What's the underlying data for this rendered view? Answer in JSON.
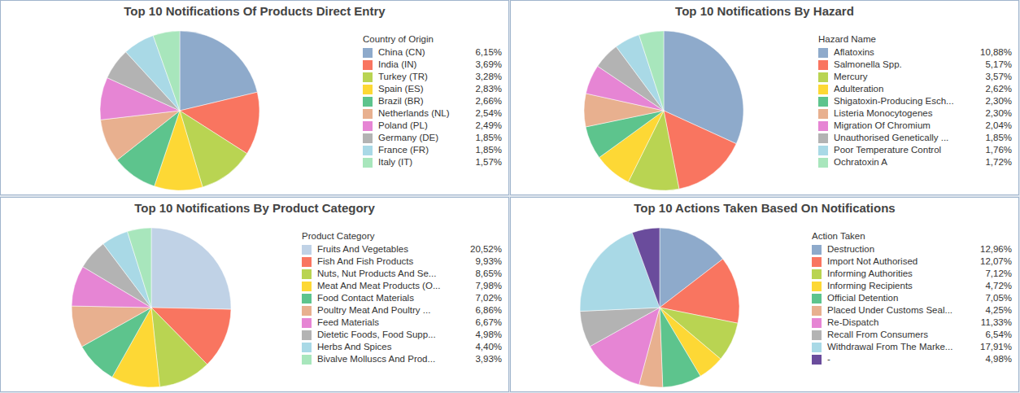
{
  "chart_data": [
    {
      "type": "pie",
      "title": "Top 10 Notifications Of Products Direct Entry",
      "legend_title": "Country of Origin",
      "legend": "right",
      "categories": [
        "China (CN)",
        "India (IN)",
        "Turkey (TR)",
        "Spain (ES)",
        "Brazil (BR)",
        "Netherlands (NL)",
        "Poland (PL)",
        "Germany (DE)",
        "France (FR)",
        "Italy (IT)"
      ],
      "values": [
        6.15,
        3.69,
        3.28,
        2.83,
        2.66,
        2.54,
        2.49,
        1.85,
        1.85,
        1.57
      ],
      "value_labels": [
        "6,15%",
        "3,69%",
        "3,28%",
        "2,83%",
        "2,66%",
        "2,54%",
        "2,49%",
        "1,85%",
        "1,85%",
        "1,57%"
      ],
      "colors": [
        "#8eaacb",
        "#f97560",
        "#b9d452",
        "#fdd835",
        "#5dc48d",
        "#e8b08f",
        "#e685d4",
        "#b3b3b3",
        "#a9d9e6",
        "#a8e6bc"
      ]
    },
    {
      "type": "pie",
      "title": "Top 10 Notifications By Hazard",
      "legend_title": "Hazard Name",
      "legend": "right",
      "categories": [
        "Aflatoxins",
        "Salmonella Spp.",
        "Mercury",
        "Adulteration",
        "Shigatoxin-Producing Esch...",
        "Listeria Monocytogenes",
        "Migration Of Chromium",
        "Unauthorised Genetically ...",
        "Poor Temperature Control",
        "Ochratoxin A"
      ],
      "values": [
        10.88,
        5.17,
        3.57,
        2.62,
        2.3,
        2.3,
        2.04,
        1.85,
        1.76,
        1.72
      ],
      "value_labels": [
        "10,88%",
        "5,17%",
        "3,57%",
        "2,62%",
        "2,30%",
        "2,30%",
        "2,04%",
        "1,85%",
        "1,76%",
        "1,72%"
      ],
      "colors": [
        "#8eaacb",
        "#f97560",
        "#b9d452",
        "#fdd835",
        "#5dc48d",
        "#e8b08f",
        "#e685d4",
        "#b3b3b3",
        "#a9d9e6",
        "#a8e6bc"
      ]
    },
    {
      "type": "pie",
      "title": "Top 10 Notifications By Product Category",
      "legend_title": "Product Category",
      "legend": "right",
      "categories": [
        "Fruits And Vegetables",
        "Fish And Fish Products",
        "Nuts, Nut Products And Se...",
        "Meat And Meat Products (O...",
        "Food Contact Materials",
        "Poultry Meat And Poultry ...",
        "Feed Materials",
        "Dietetic Foods, Food Supp...",
        "Herbs And Spices",
        "Bivalve Molluscs And Prod..."
      ],
      "values": [
        20.52,
        9.93,
        8.65,
        7.98,
        7.02,
        6.86,
        6.67,
        4.98,
        4.4,
        3.93
      ],
      "value_labels": [
        "20,52%",
        "9,93%",
        "8,65%",
        "7,98%",
        "7,02%",
        "6,86%",
        "6,67%",
        "4,98%",
        "4,40%",
        "3,93%"
      ],
      "colors": [
        "#c0d2e6",
        "#f97560",
        "#b9d452",
        "#fdd835",
        "#5dc48d",
        "#e8b08f",
        "#e685d4",
        "#b3b3b3",
        "#a9d9e6",
        "#a8e6bc"
      ]
    },
    {
      "type": "pie",
      "title": "Top 10 Actions Taken Based On Notifications",
      "legend_title": "Action Taken",
      "legend": "right",
      "categories": [
        "Destruction",
        "Import Not Authorised",
        "Informing Authorities",
        "Informing Recipients",
        "Official Detention",
        "Placed Under Customs Seal...",
        "Re-Dispatch",
        "Recall From Consumers",
        "Withdrawal From The Marke...",
        "-"
      ],
      "values": [
        12.96,
        12.07,
        7.12,
        4.72,
        7.05,
        4.25,
        11.33,
        6.54,
        17.91,
        4.98
      ],
      "value_labels": [
        "12,96%",
        "12,07%",
        "7,12%",
        "4,72%",
        "7,05%",
        "4,25%",
        "11,33%",
        "6,54%",
        "17,91%",
        "4,98%"
      ],
      "colors": [
        "#8eaacb",
        "#f97560",
        "#b9d452",
        "#fdd835",
        "#5dc48d",
        "#e8b08f",
        "#e685d4",
        "#b3b3b3",
        "#a9d9e6",
        "#6a4c9c"
      ]
    }
  ]
}
